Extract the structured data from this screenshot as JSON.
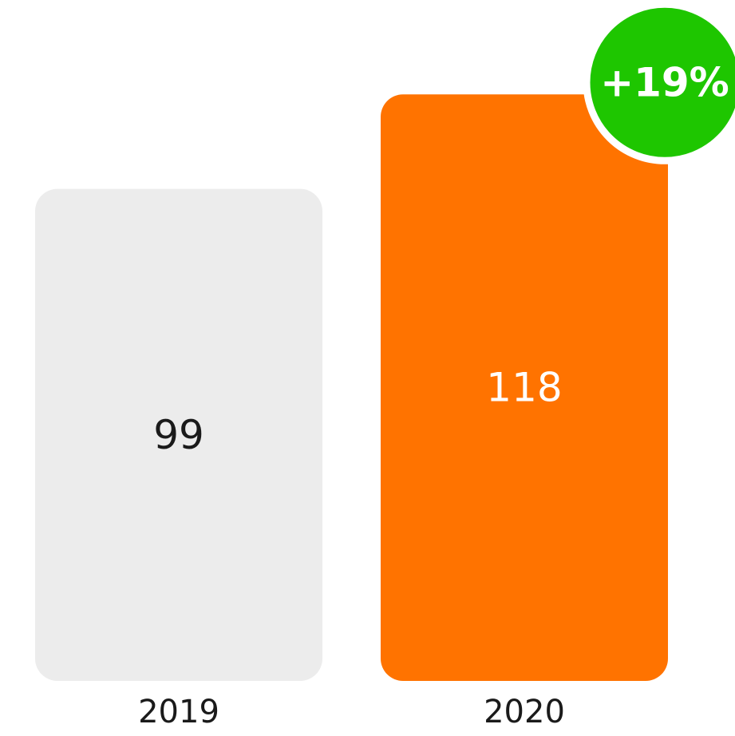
{
  "chart_data": {
    "type": "bar",
    "categories": [
      "2019",
      "2020"
    ],
    "values": [
      99,
      118
    ],
    "colors": [
      "#ececec",
      "#ff7300"
    ],
    "ylim": [
      0,
      137
    ],
    "annotation": "+19%",
    "annotation_color": "#1ec600"
  }
}
